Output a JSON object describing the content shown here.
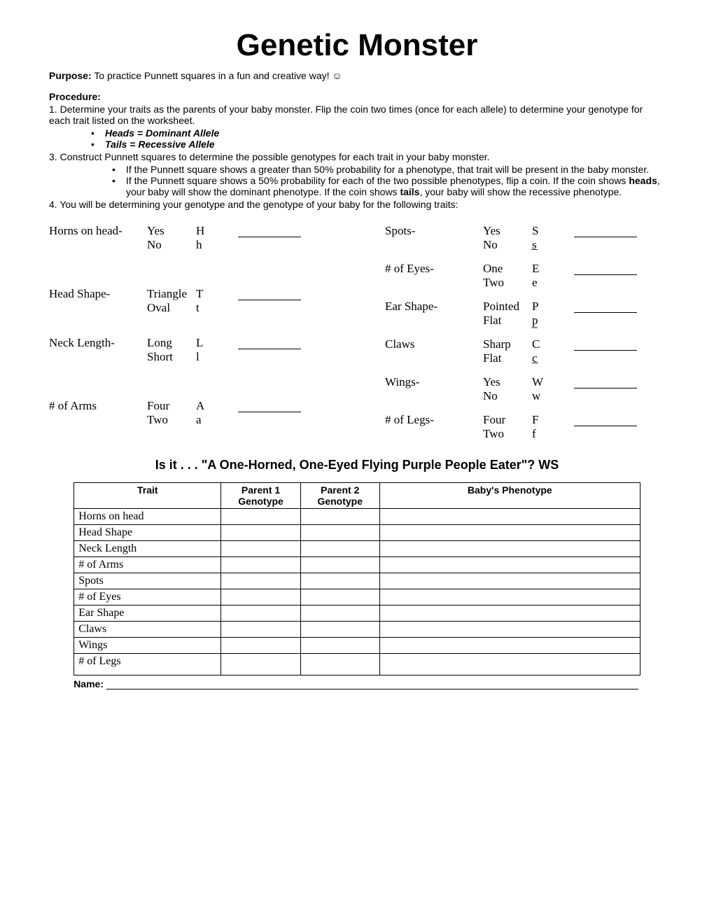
{
  "title": "Genetic Monster",
  "purpose_label": "Purpose:",
  "purpose_text": "  To practice Punnett squares in a fun and creative way! ☺",
  "procedure_label": "Procedure:",
  "step1": "1.  Determine your traits as the parents of your baby monster.  Flip the coin two times (once for each allele) to determine your genotype for each trait listed on the worksheet.",
  "bullet_heads": "Heads = Dominant Allele",
  "bullet_tails": "Tails = Recessive Allele",
  "step3": "3.  Construct Punnett squares to determine the possible genotypes for each trait in your baby monster.",
  "sub1_a": "If the Punnett square shows a greater than 50% probability for a phenotype, that trait will be present in the baby monster.",
  "sub2_a": "If the Punnett square shows a 50% probability for each of the two possible phenotypes, flip a coin.  If the coin shows ",
  "sub2_b": "heads",
  "sub2_c": ", your baby will show the dominant phenotype.  If the coin shows ",
  "sub2_d": "tails",
  "sub2_e": ", your baby will show the recessive phenotype.",
  "step4": "4.  You will be determining your genotype and the genotype of your baby for the following traits:",
  "left_traits": [
    {
      "name": "Horns on head-",
      "opts": [
        {
          "phen": "Yes",
          "allele": "H"
        },
        {
          "phen": "No",
          "allele": "h"
        }
      ],
      "extra_gap": true
    },
    {
      "name": "Head Shape-",
      "opts": [
        {
          "phen": "Triangle",
          "allele": "T"
        },
        {
          "phen": "Oval",
          "allele": "t"
        }
      ]
    },
    {
      "name": "Neck Length-",
      "opts": [
        {
          "phen": "Long",
          "allele": "L"
        },
        {
          "phen": "Short",
          "allele": "l"
        }
      ],
      "extra_gap": true
    },
    {
      "name": "# of Arms",
      "opts": [
        {
          "phen": "Four",
          "allele": "A"
        },
        {
          "phen": "Two",
          "allele": "a"
        }
      ]
    }
  ],
  "right_traits": [
    {
      "name": "Spots-",
      "opts": [
        {
          "phen": "Yes",
          "allele": "S"
        },
        {
          "phen": "No",
          "allele": "s̲"
        }
      ]
    },
    {
      "name": "# of Eyes-",
      "opts": [
        {
          "phen": "One",
          "allele": "E"
        },
        {
          "phen": "Two",
          "allele": "e"
        }
      ]
    },
    {
      "name": "Ear Shape-",
      "opts": [
        {
          "phen": "Pointed",
          "allele": "P"
        },
        {
          "phen": "Flat",
          "allele": "p̲"
        }
      ]
    },
    {
      "name": "Claws",
      "opts": [
        {
          "phen": "Sharp",
          "allele": "C"
        },
        {
          "phen": "Flat",
          "allele": "c̲"
        }
      ]
    },
    {
      "name": "Wings-",
      "opts": [
        {
          "phen": "Yes",
          "allele": "W"
        },
        {
          "phen": "No",
          "allele": "w"
        }
      ]
    },
    {
      "name": "# of Legs-",
      "opts": [
        {
          "phen": "Four",
          "allele": "F"
        },
        {
          "phen": "Two",
          "allele": "f"
        }
      ]
    }
  ],
  "subtitle": "Is it . . . \"A One-Horned, One-Eyed Flying Purple People Eater\"?   WS",
  "table": {
    "headers": [
      "Trait",
      "Parent 1 Genotype",
      "Parent 2 Genotype",
      "Baby's Phenotype"
    ],
    "rows": [
      "Horns on head",
      "Head Shape",
      "Neck Length",
      "# of Arms",
      "Spots",
      "# of Eyes",
      "Ear Shape",
      "Claws",
      "Wings",
      "# of Legs"
    ]
  },
  "name_label": "Name: "
}
